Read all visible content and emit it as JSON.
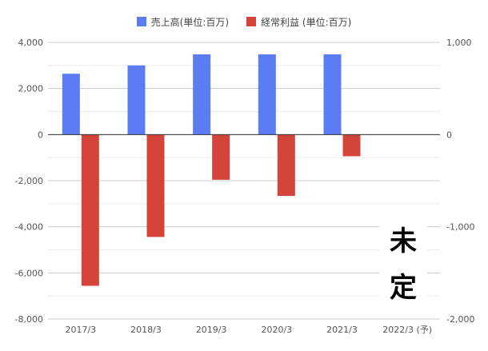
{
  "chart_data": {
    "type": "bar",
    "categories": [
      "2017/3",
      "2018/3",
      "2019/3",
      "2020/3",
      "2021/3",
      "2022/3 (予)"
    ],
    "series": [
      {
        "name": "売上高(単位:百万)",
        "axis": "left",
        "color": "#5b7cf5",
        "values": [
          2640,
          3000,
          3480,
          3480,
          3480,
          null
        ]
      },
      {
        "name": "経常利益 (単位:百万)",
        "axis": "right",
        "color": "#d5443b",
        "values": [
          -1640,
          -1110,
          -490,
          -665,
          -235,
          null
        ]
      }
    ],
    "left_axis": {
      "ylim": [
        -8000,
        4000
      ],
      "ticks": [
        "4,000",
        "2,000",
        "0",
        "-2,000",
        "-4,000",
        "-6,000",
        "-8,000"
      ]
    },
    "right_axis": {
      "ylim": [
        -2000,
        1000
      ],
      "ticks": [
        "1,000",
        "0",
        "-1,000",
        "-2,000"
      ]
    },
    "grid": true,
    "legend_position": "top",
    "annotation": [
      "未",
      "定"
    ]
  }
}
